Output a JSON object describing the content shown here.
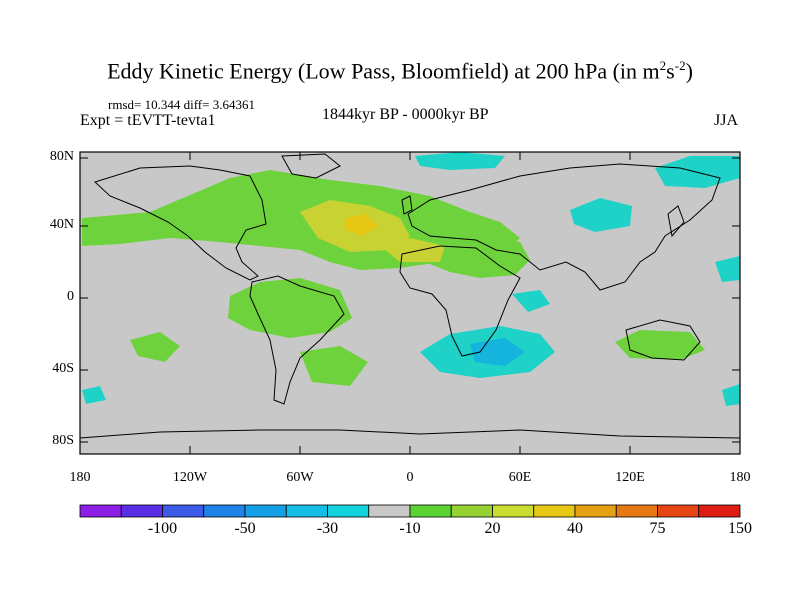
{
  "title_main": "Eddy Kinetic Energy (Low Pass, Bloomfield) at 200 hPa (in m",
  "title_sup1": "2",
  "title_s": "s",
  "title_sup2": "-2",
  "title_close": ")",
  "stats_text": "rmsd= 10.344 diff= 3.64361",
  "expt_text": "Expt = tEVTT-tevta1",
  "period_text": "1844kyr BP - 0000kyr BP",
  "season_text": "JJA",
  "y_axis_labels": [
    "80N",
    "40N",
    "0",
    "40S",
    "80S"
  ],
  "x_axis_labels": [
    "180",
    "120W",
    "60W",
    "0",
    "60E",
    "120E",
    "180"
  ],
  "colorbar": {
    "colors": [
      "#8c1ee6",
      "#5a2ee6",
      "#3c5ae6",
      "#1e82e6",
      "#14a0e6",
      "#14bee6",
      "#14d2dc",
      "#c8c8c8",
      "#5ad232",
      "#96d232",
      "#c8dc32",
      "#e6c814",
      "#e6a014",
      "#e67814",
      "#e64614",
      "#dc1e14"
    ],
    "labels": [
      "-100",
      "-50",
      "-30",
      "-10",
      "20",
      "40",
      "75",
      "150"
    ]
  },
  "land_color": "#c8c8c8",
  "positive_color": "#6ed23c",
  "strong_positive_color": "#c8d232",
  "peak_color": "#e6c814",
  "negative_color": "#1ed2c8",
  "strong_negative_color": "#14b4dc"
}
